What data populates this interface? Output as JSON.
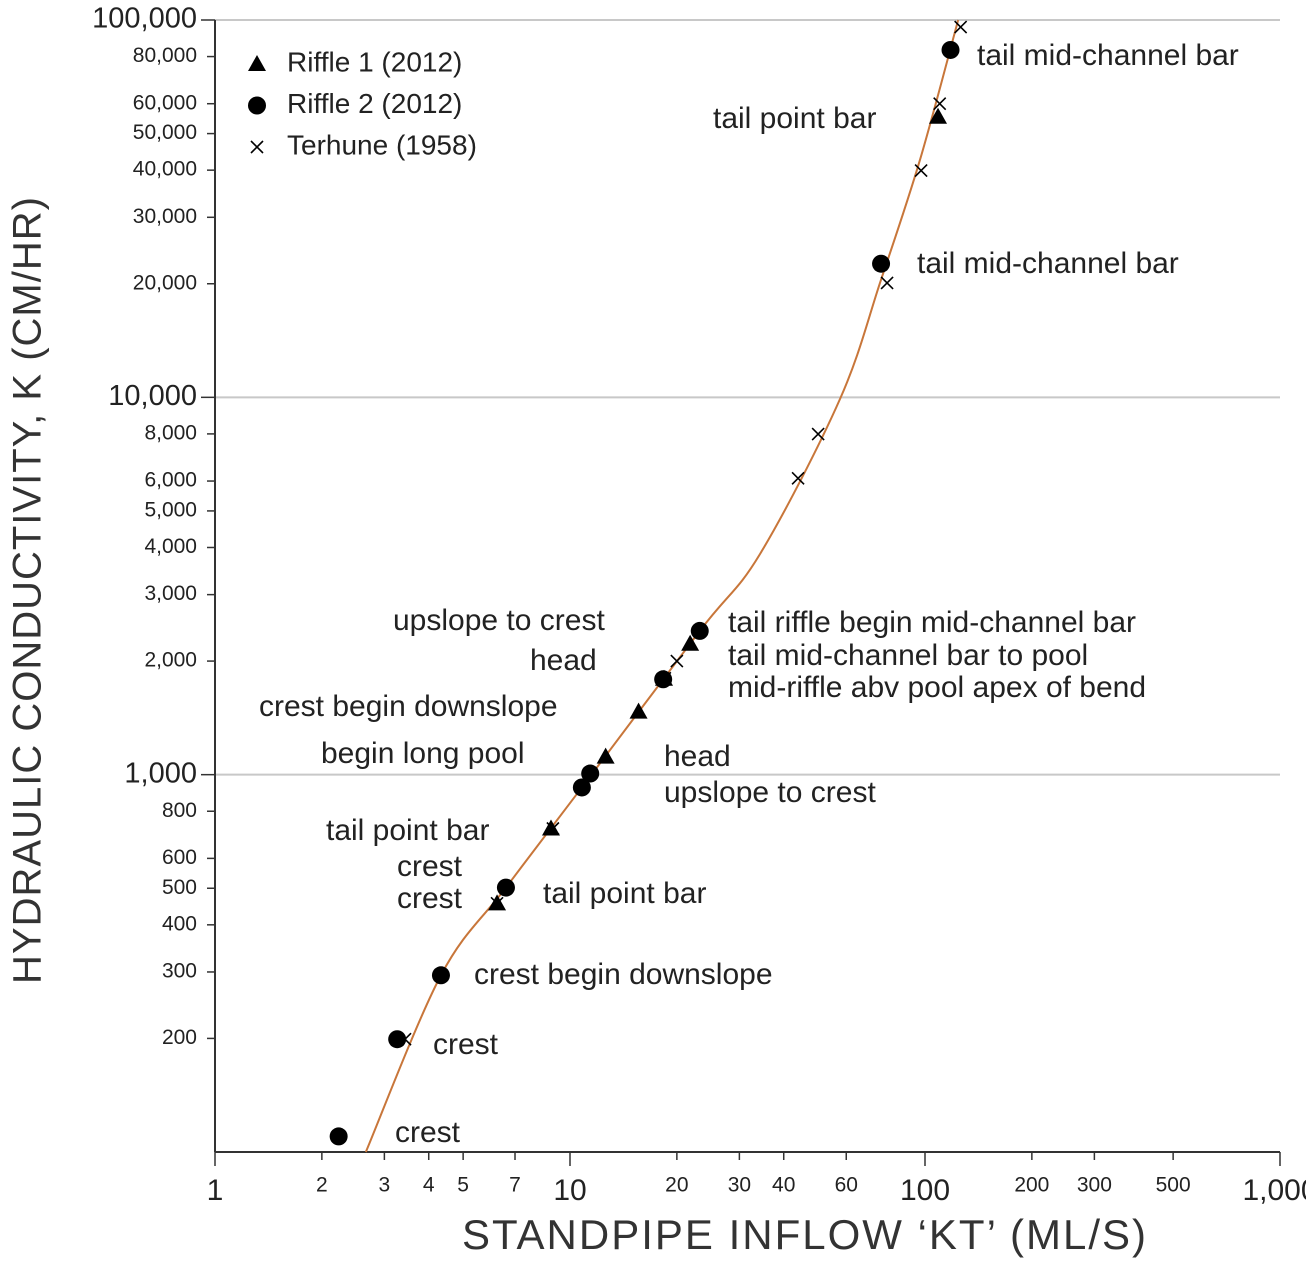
{
  "chart_data": {
    "type": "scatter",
    "x_label": "STANDPIPE INFLOW ‘KT’ (ML/S)",
    "y_label": "HYDRAULIC CONDUCTIVITY, K (CM/HR)",
    "xlog": true,
    "ylog": true,
    "grid": true,
    "legend": "top-left",
    "xlim": [
      1,
      1000
    ],
    "ylim": [
      100,
      100000
    ],
    "xticks": [
      1,
      2,
      3,
      4,
      5,
      7,
      10,
      20,
      30,
      40,
      60,
      100,
      200,
      300,
      500,
      {
        "value": 1000,
        "label": "1,000"
      }
    ],
    "yticks": [
      200,
      300,
      400,
      500,
      600,
      800,
      {
        "value": 1000,
        "label": "1,000"
      },
      {
        "value": 2000,
        "label": "2,000"
      },
      {
        "value": 3000,
        "label": "3,000"
      },
      {
        "value": 4000,
        "label": "4,000"
      },
      {
        "value": 5000,
        "label": "5,000"
      },
      {
        "value": 6000,
        "label": "6,000"
      },
      {
        "value": 8000,
        "label": "8,000"
      },
      {
        "value": 10000,
        "label": "10,000"
      },
      {
        "value": 20000,
        "label": "20,000"
      },
      {
        "value": 30000,
        "label": "30,000"
      },
      {
        "value": 40000,
        "label": "40,000"
      },
      {
        "value": 50000,
        "label": "50,000"
      },
      {
        "value": 60000,
        "label": "60,000"
      },
      {
        "value": 80000,
        "label": "80,000"
      },
      {
        "value": 100000,
        "label": "100,000"
      }
    ],
    "series": [
      {
        "name": "Riffle 1 (2012)",
        "marker": "triangle",
        "color": "#000000",
        "x": [
          108.8,
          12.6,
          15.6,
          18.4,
          21.8,
          8.84,
          6.23
        ],
        "values": [
          55400,
          1116,
          1469,
          1795,
          2223,
          720,
          456
        ]
      },
      {
        "name": "Riffle 2 (2012)",
        "marker": "circle",
        "color": "#000000",
        "x": [
          118,
          75.2,
          23.2,
          18.3,
          11.4,
          10.8,
          6.6,
          4.33,
          3.26,
          2.23
        ],
        "values": [
          83300,
          22600,
          2404,
          1790,
          1007,
          925,
          502,
          294,
          199,
          110
        ]
      },
      {
        "name": "Terhune (1958)",
        "marker": "cross",
        "color": "#000000",
        "x": [
          126,
          110,
          97.5,
          78.2,
          50,
          43.9,
          20,
          18.5,
          8.95,
          6.23,
          4.33,
          3.43
        ],
        "values": [
          95800,
          60000,
          39900,
          20100,
          7990,
          6100,
          2000,
          1800,
          720,
          456,
          294,
          199
        ]
      }
    ],
    "trend": {
      "color": "#c8763a",
      "x": [
        2.66,
        4.33,
        6.6,
        10.8,
        23.2,
        34.3,
        57.6,
        75.2,
        96.8,
        124
      ],
      "values": [
        100,
        294,
        502,
        925,
        2404,
        3845,
        9890,
        20500,
        42600,
        100000
      ]
    },
    "annotations": [
      "tail mid-channel bar",
      "tail point bar",
      "tail mid-channel bar",
      "upslope to crest",
      "head",
      "crest begin downslope",
      "begin long pool",
      "tail riffle begin mid-channel bar",
      "tail mid-channel bar to pool",
      "mid-riffle abv pool apex of bend",
      "head",
      "upslope to crest",
      "tail point bar",
      "crest",
      "crest",
      "tail point bar",
      "crest begin downslope",
      "crest",
      "crest"
    ]
  }
}
